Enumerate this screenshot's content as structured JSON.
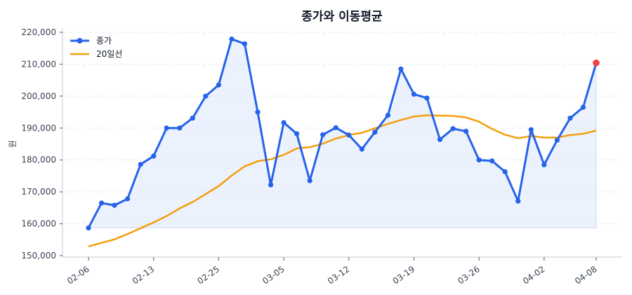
{
  "chart_data": {
    "type": "line",
    "title": "종가와 이동평균",
    "xlabel": "",
    "ylabel": "원",
    "ylim": [
      150000,
      220000
    ],
    "yticks": [
      150000,
      160000,
      170000,
      180000,
      190000,
      200000,
      210000,
      220000
    ],
    "ytick_labels": [
      "150,000",
      "160,000",
      "170,000",
      "180,000",
      "190,000",
      "200,000",
      "210,000",
      "220,000"
    ],
    "xtick_labels": [
      {
        "index": 0,
        "label": "02-06"
      },
      {
        "index": 5,
        "label": "02-13"
      },
      {
        "index": 10,
        "label": "02-25"
      },
      {
        "index": 15,
        "label": "03-05"
      },
      {
        "index": 20,
        "label": "03-12"
      },
      {
        "index": 25,
        "label": "03-19"
      },
      {
        "index": 30,
        "label": "03-26"
      },
      {
        "index": 35,
        "label": "04-02"
      },
      {
        "index": 39,
        "label": "04-08"
      }
    ],
    "grid": true,
    "legend_position": "upper left",
    "n_points": 40,
    "series": [
      {
        "name": "종가",
        "color": "#2563eb",
        "marker": "circle",
        "fill_color": "#dbe5fb",
        "values": [
          158700,
          166500,
          165800,
          167800,
          178600,
          181200,
          190000,
          190000,
          193100,
          200000,
          203500,
          217900,
          216400,
          195000,
          172200,
          191700,
          188200,
          173500,
          187900,
          190100,
          187800,
          183400,
          188700,
          194000,
          208500,
          200600,
          199400,
          186400,
          189800,
          189000,
          180000,
          179700,
          176300,
          167100,
          189500,
          178500,
          186200,
          193100,
          196500,
          210400
        ]
      },
      {
        "name": "20일선",
        "color": "#f59e0b",
        "marker": "none",
        "values": [
          152900,
          154000,
          155100,
          156800,
          158600,
          160400,
          162400,
          164800,
          166800,
          169300,
          171800,
          175100,
          178000,
          179600,
          180200,
          181600,
          183600,
          184000,
          185100,
          186700,
          187800,
          188500,
          189900,
          191300,
          192500,
          193600,
          194000,
          193900,
          193800,
          193300,
          192000,
          189700,
          187900,
          186800,
          187500,
          187000,
          187000,
          187800,
          188200,
          189200
        ]
      }
    ],
    "annotations": [
      {
        "type": "highlight-point",
        "index": 39,
        "value": 210400,
        "color": "#ef4444"
      }
    ]
  },
  "legend": {
    "items": [
      {
        "label": "종가",
        "color": "#2563eb"
      },
      {
        "label": "20일선",
        "color": "#f59e0b"
      }
    ]
  }
}
